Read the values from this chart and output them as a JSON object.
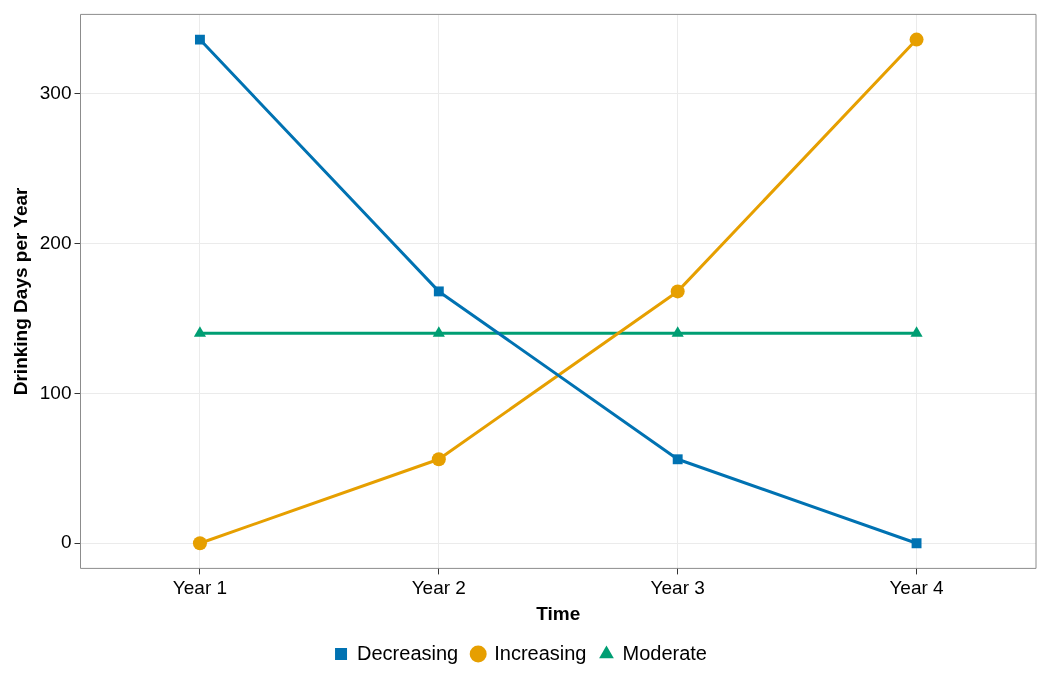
{
  "chart_data": {
    "type": "line",
    "xlabel": "Time",
    "ylabel": "Drinking Days per Year",
    "categories": [
      "Year 1",
      "Year 2",
      "Year 3",
      "Year 4"
    ],
    "series": [
      {
        "name": "Decreasing",
        "color": "#0072b2",
        "marker": "square",
        "values": [
          336,
          168,
          56,
          0
        ]
      },
      {
        "name": "Increasing",
        "color": "#e69f00",
        "marker": "circle",
        "values": [
          0,
          56,
          168,
          336
        ]
      },
      {
        "name": "Moderate",
        "color": "#009e73",
        "marker": "triangle",
        "values": [
          140,
          140,
          140,
          140
        ]
      }
    ],
    "ylim": [
      -16.8,
      352.8
    ],
    "yticks": [
      0,
      100,
      200,
      300
    ],
    "grid": true,
    "legend": "bottom",
    "line_style": "solid"
  }
}
